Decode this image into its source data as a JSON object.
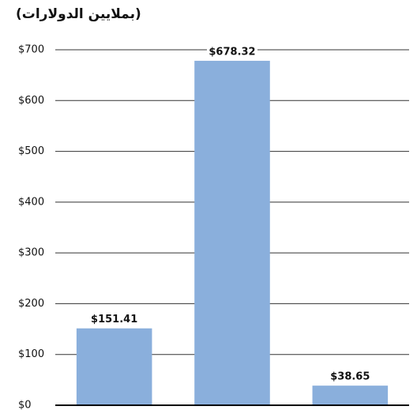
{
  "chart_data": {
    "type": "bar",
    "title": "(بملايين الدولارات)",
    "categories": [
      null,
      null,
      null
    ],
    "values": [
      151.41,
      678.32,
      38.65
    ],
    "value_labels": [
      "$151.41",
      "$678.32",
      "$38.65"
    ],
    "color": "#8aafdc",
    "ylim": [
      0,
      700
    ],
    "yticks": [
      {
        "value": 0,
        "label": "$0"
      },
      {
        "value": 100,
        "label": "$100"
      },
      {
        "value": 200,
        "label": "$200"
      },
      {
        "value": 300,
        "label": "$300"
      },
      {
        "value": 400,
        "label": "$400"
      },
      {
        "value": 500,
        "label": "$500"
      },
      {
        "value": 600,
        "label": "$600"
      },
      {
        "value": 700,
        "label": "$700"
      }
    ],
    "grid": true
  }
}
